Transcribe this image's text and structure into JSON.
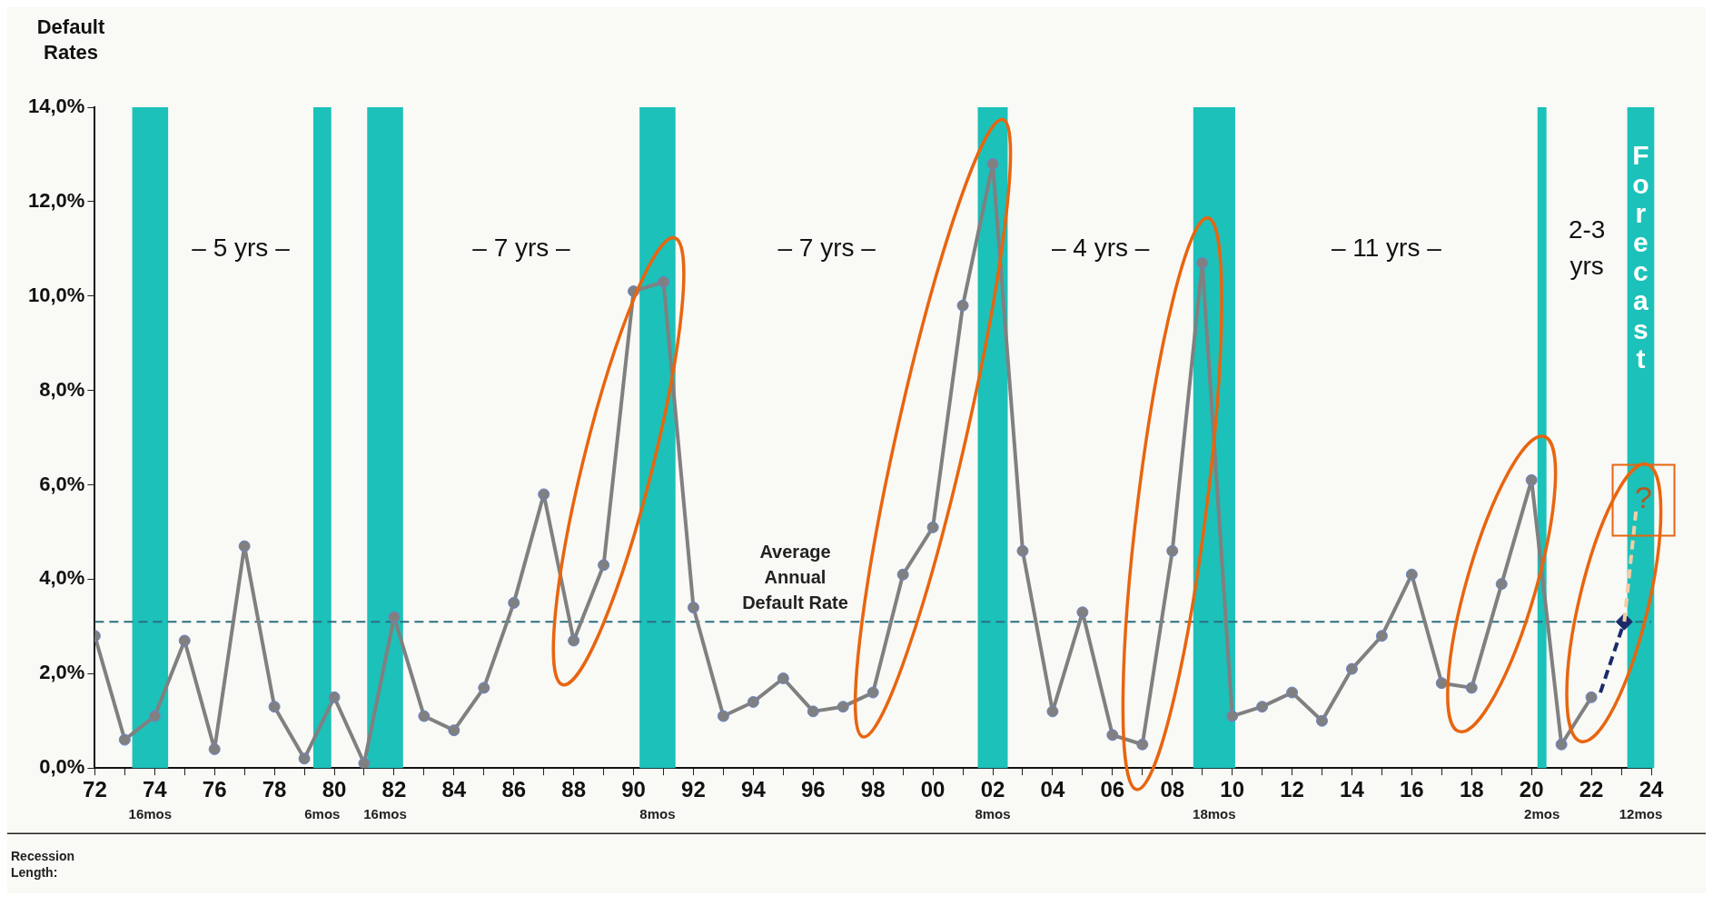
{
  "chart_data": {
    "type": "line",
    "ylabel": "Default Rates",
    "x": [
      1972,
      1973,
      1974,
      1975,
      1976,
      1977,
      1978,
      1979,
      1980,
      1981,
      1982,
      1983,
      1984,
      1985,
      1986,
      1987,
      1988,
      1989,
      1990,
      1991,
      1992,
      1993,
      1994,
      1995,
      1996,
      1997,
      1998,
      1999,
      2000,
      2001,
      2002,
      2003,
      2004,
      2005,
      2006,
      2007,
      2008,
      2009,
      2010,
      2011,
      2012,
      2013,
      2014,
      2015,
      2016,
      2017,
      2018,
      2019,
      2020,
      2021,
      2022
    ],
    "series": [
      {
        "color": "#808080",
        "marker": "circle",
        "line_style": "solid",
        "values": [
          2.8,
          0.6,
          1.1,
          2.7,
          0.4,
          4.7,
          1.3,
          0.2,
          1.5,
          0.1,
          3.2,
          1.1,
          0.8,
          1.7,
          3.5,
          5.8,
          2.7,
          4.3,
          10.1,
          10.3,
          3.4,
          1.1,
          1.4,
          1.9,
          1.2,
          1.3,
          1.6,
          4.1,
          5.1,
          9.8,
          12.8,
          4.6,
          1.2,
          3.3,
          0.7,
          0.5,
          4.6,
          10.7,
          1.1,
          1.3,
          1.6,
          1.0,
          2.1,
          2.8,
          4.1,
          1.8,
          1.7,
          3.9,
          6.1,
          0.5,
          1.5
        ]
      },
      {
        "type": "line",
        "color": "#1b2a6b",
        "marker": "none",
        "line_style": "dashed",
        "x": [
          2022.3,
          2023.1
        ],
        "values": [
          1.6,
          3.1
        ]
      },
      {
        "type": "line",
        "color": "#f3cfa6",
        "marker": "none",
        "line_style": "dashed",
        "x": [
          2023.1,
          2023.5
        ],
        "values": [
          3.1,
          5.5
        ]
      },
      {
        "type": "scatter",
        "color": "#1b2a6b",
        "marker": "diamond",
        "x": [
          2023.1
        ],
        "values": [
          3.1
        ]
      }
    ],
    "xlim": [
      1972,
      2024
    ],
    "xticks": [
      {
        "value": 1972,
        "label": "72"
      },
      {
        "value": 1973,
        "label": null
      },
      {
        "value": 1974,
        "label": "74"
      },
      {
        "value": 1975,
        "label": null
      },
      {
        "value": 1976,
        "label": "76"
      },
      {
        "value": 1977,
        "label": null
      },
      {
        "value": 1978,
        "label": "78"
      },
      {
        "value": 1979,
        "label": null
      },
      {
        "value": 1980,
        "label": "80"
      },
      {
        "value": 1981,
        "label": null
      },
      {
        "value": 1982,
        "label": "82"
      },
      {
        "value": 1983,
        "label": null
      },
      {
        "value": 1984,
        "label": "84"
      },
      {
        "value": 1985,
        "label": null
      },
      {
        "value": 1986,
        "label": "86"
      },
      {
        "value": 1987,
        "label": null
      },
      {
        "value": 1988,
        "label": "88"
      },
      {
        "value": 1989,
        "label": null
      },
      {
        "value": 1990,
        "label": "90"
      },
      {
        "value": 1991,
        "label": null
      },
      {
        "value": 1992,
        "label": "92"
      },
      {
        "value": 1993,
        "label": null
      },
      {
        "value": 1994,
        "label": "94"
      },
      {
        "value": 1995,
        "label": null
      },
      {
        "value": 1996,
        "label": "96"
      },
      {
        "value": 1997,
        "label": null
      },
      {
        "value": 1998,
        "label": "98"
      },
      {
        "value": 1999,
        "label": null
      },
      {
        "value": 2000,
        "label": "00"
      },
      {
        "value": 2001,
        "label": null
      },
      {
        "value": 2002,
        "label": "02"
      },
      {
        "value": 2003,
        "label": null
      },
      {
        "value": 2004,
        "label": "04"
      },
      {
        "value": 2005,
        "label": null
      },
      {
        "value": 2006,
        "label": "06"
      },
      {
        "value": 2007,
        "label": null
      },
      {
        "value": 2008,
        "label": "08"
      },
      {
        "value": 2009,
        "label": null
      },
      {
        "value": 2010,
        "label": "10"
      },
      {
        "value": 2011,
        "label": null
      },
      {
        "value": 2012,
        "label": "12"
      },
      {
        "value": 2013,
        "label": null
      },
      {
        "value": 2014,
        "label": "14"
      },
      {
        "value": 2015,
        "label": null
      },
      {
        "value": 2016,
        "label": "16"
      },
      {
        "value": 2017,
        "label": null
      },
      {
        "value": 2018,
        "label": "18"
      },
      {
        "value": 2019,
        "label": null
      },
      {
        "value": 2020,
        "label": "20"
      },
      {
        "value": 2021,
        "label": null
      },
      {
        "value": 2022,
        "label": "22"
      },
      {
        "value": 2023,
        "label": null
      },
      {
        "value": 2024,
        "label": "24"
      }
    ],
    "ylim": [
      0,
      14
    ],
    "yticks": [
      {
        "value": 0,
        "label": "0,0%"
      },
      {
        "value": 2,
        "label": "2,0%"
      },
      {
        "value": 4,
        "label": "4,0%"
      },
      {
        "value": 6,
        "label": "6,0%"
      },
      {
        "value": 8,
        "label": "8,0%"
      },
      {
        "value": 10,
        "label": "10,0%"
      },
      {
        "value": 12,
        "label": "12,0%"
      },
      {
        "value": 14,
        "label": "14,0%"
      }
    ],
    "grid": false,
    "legend": false,
    "ref_lines": [
      {
        "axis": "y",
        "value": 3.1,
        "label": "Average\nAnnual\nDefault Rate",
        "color": "#2a6f80",
        "line_style": "dashed"
      }
    ],
    "bands": [
      {
        "axis": "x",
        "from": 1973.25,
        "to": 1974.45,
        "label": "16mos",
        "color": "#1cc1b9"
      },
      {
        "axis": "x",
        "from": 1979.3,
        "to": 1979.9,
        "label": "6mos",
        "color": "#1cc1b9"
      },
      {
        "axis": "x",
        "from": 1981.1,
        "to": 1982.3,
        "label": "16mos",
        "color": "#1cc1b9"
      },
      {
        "axis": "x",
        "from": 1990.2,
        "to": 1991.4,
        "label": "8mos",
        "color": "#1cc1b9"
      },
      {
        "axis": "x",
        "from": 2001.5,
        "to": 2002.5,
        "label": "8mos",
        "color": "#1cc1b9"
      },
      {
        "axis": "x",
        "from": 2008.7,
        "to": 2010.1,
        "label": "18mos",
        "color": "#1cc1b9"
      },
      {
        "axis": "x",
        "from": 2020.2,
        "to": 2020.5,
        "label": "2mos",
        "color": "#1cc1b9"
      },
      {
        "axis": "x",
        "from": 2023.2,
        "to": 2024.1,
        "label": "12mos",
        "color": "#1cc1b9"
      }
    ],
    "annotations": [
      "Recession Length:",
      "– 5 yrs –",
      "– 7 yrs –",
      "– 7 yrs –",
      "– 4 yrs –",
      "– 11 yrs –",
      "2-3\nyrs",
      "Forecast",
      "?"
    ]
  }
}
